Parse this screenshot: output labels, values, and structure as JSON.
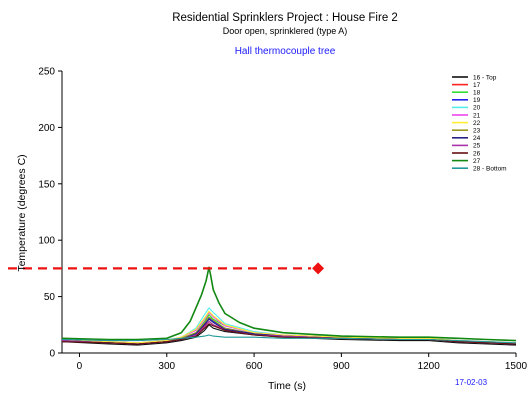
{
  "chart_data": {
    "type": "line",
    "title": "Residential Sprinklers Project : House Fire 2",
    "subtitle": "Door open, sprinklered (type A)",
    "subtitle2": "Hall thermocouple tree",
    "xlabel": "Time (s)",
    "ylabel": "Temperature (degrees C)",
    "date_stamp": "17-02-03",
    "xlim": [
      -60,
      1500
    ],
    "ylim": [
      0,
      250
    ],
    "xticks": [
      0,
      300,
      600,
      900,
      1200,
      1500
    ],
    "yticks": [
      0,
      50,
      100,
      150,
      200,
      250
    ],
    "grid": false,
    "legend_position": "top-right",
    "marker": {
      "x": 820,
      "y": 75,
      "color": "#ee1111"
    },
    "series": [
      {
        "name": "16 - Top",
        "color": "#111111",
        "points": [
          [
            -60,
            10
          ],
          [
            100,
            8
          ],
          [
            200,
            7
          ],
          [
            300,
            9
          ],
          [
            350,
            11
          ],
          [
            400,
            14
          ],
          [
            430,
            20
          ],
          [
            445,
            25
          ],
          [
            460,
            22
          ],
          [
            500,
            19
          ],
          [
            600,
            16
          ],
          [
            700,
            14
          ],
          [
            900,
            12
          ],
          [
            1100,
            11
          ],
          [
            1200,
            11
          ],
          [
            1300,
            9
          ],
          [
            1400,
            8
          ],
          [
            1500,
            7
          ]
        ]
      },
      {
        "name": "17",
        "color": "#ff2222",
        "points": [
          [
            -60,
            11
          ],
          [
            100,
            9
          ],
          [
            200,
            8
          ],
          [
            300,
            10
          ],
          [
            350,
            12
          ],
          [
            400,
            16
          ],
          [
            430,
            24
          ],
          [
            445,
            28
          ],
          [
            460,
            25
          ],
          [
            500,
            21
          ],
          [
            600,
            17
          ],
          [
            700,
            15
          ],
          [
            900,
            13
          ],
          [
            1100,
            12
          ],
          [
            1200,
            12
          ],
          [
            1300,
            10
          ],
          [
            1400,
            9
          ],
          [
            1500,
            8
          ]
        ]
      },
      {
        "name": "18",
        "color": "#33dd33",
        "points": [
          [
            -60,
            12
          ],
          [
            100,
            10
          ],
          [
            200,
            9
          ],
          [
            300,
            11
          ],
          [
            350,
            13
          ],
          [
            400,
            18
          ],
          [
            430,
            28
          ],
          [
            445,
            34
          ],
          [
            460,
            30
          ],
          [
            500,
            24
          ],
          [
            600,
            18
          ],
          [
            700,
            16
          ],
          [
            900,
            13
          ],
          [
            1100,
            12
          ],
          [
            1200,
            12
          ],
          [
            1300,
            10
          ],
          [
            1400,
            9
          ],
          [
            1500,
            8
          ]
        ]
      },
      {
        "name": "19",
        "color": "#2222ee",
        "points": [
          [
            -60,
            11
          ],
          [
            100,
            9
          ],
          [
            200,
            8
          ],
          [
            300,
            10
          ],
          [
            350,
            12
          ],
          [
            400,
            17
          ],
          [
            430,
            26
          ],
          [
            445,
            31
          ],
          [
            460,
            28
          ],
          [
            500,
            22
          ],
          [
            600,
            17
          ],
          [
            700,
            15
          ],
          [
            900,
            13
          ],
          [
            1100,
            12
          ],
          [
            1200,
            12
          ],
          [
            1300,
            10
          ],
          [
            1400,
            9
          ],
          [
            1500,
            8
          ]
        ]
      },
      {
        "name": "20",
        "color": "#55eeee",
        "points": [
          [
            -60,
            12
          ],
          [
            100,
            10
          ],
          [
            200,
            9
          ],
          [
            300,
            11
          ],
          [
            350,
            14
          ],
          [
            400,
            22
          ],
          [
            430,
            34
          ],
          [
            445,
            40
          ],
          [
            460,
            36
          ],
          [
            500,
            26
          ],
          [
            600,
            19
          ],
          [
            700,
            16
          ],
          [
            900,
            14
          ],
          [
            1100,
            13
          ],
          [
            1200,
            13
          ],
          [
            1300,
            11
          ],
          [
            1400,
            10
          ],
          [
            1500,
            9
          ]
        ]
      },
      {
        "name": "21",
        "color": "#ee44ee",
        "points": [
          [
            -60,
            12
          ],
          [
            100,
            10
          ],
          [
            200,
            9
          ],
          [
            300,
            11
          ],
          [
            350,
            14
          ],
          [
            400,
            20
          ],
          [
            430,
            30
          ],
          [
            445,
            36
          ],
          [
            460,
            32
          ],
          [
            500,
            24
          ],
          [
            600,
            18
          ],
          [
            700,
            16
          ],
          [
            900,
            14
          ],
          [
            1100,
            13
          ],
          [
            1200,
            13
          ],
          [
            1300,
            11
          ],
          [
            1400,
            10
          ],
          [
            1500,
            9
          ]
        ]
      },
      {
        "name": "22",
        "color": "#ffee33",
        "points": [
          [
            -60,
            12
          ],
          [
            100,
            10
          ],
          [
            200,
            9
          ],
          [
            300,
            11
          ],
          [
            350,
            14
          ],
          [
            400,
            21
          ],
          [
            430,
            31
          ],
          [
            445,
            37
          ],
          [
            460,
            33
          ],
          [
            500,
            25
          ],
          [
            600,
            18
          ],
          [
            700,
            16
          ],
          [
            900,
            14
          ],
          [
            1100,
            13
          ],
          [
            1200,
            13
          ],
          [
            1300,
            11
          ],
          [
            1400,
            10
          ],
          [
            1500,
            9
          ]
        ]
      },
      {
        "name": "23",
        "color": "#999922",
        "points": [
          [
            -60,
            11
          ],
          [
            100,
            9
          ],
          [
            200,
            8
          ],
          [
            300,
            10
          ],
          [
            350,
            13
          ],
          [
            400,
            18
          ],
          [
            430,
            27
          ],
          [
            445,
            32
          ],
          [
            460,
            29
          ],
          [
            500,
            22
          ],
          [
            600,
            17
          ],
          [
            700,
            15
          ],
          [
            900,
            13
          ],
          [
            1100,
            12
          ],
          [
            1200,
            12
          ],
          [
            1300,
            10
          ],
          [
            1400,
            9
          ],
          [
            1500,
            8
          ]
        ]
      },
      {
        "name": "24",
        "color": "#222288",
        "points": [
          [
            -60,
            11
          ],
          [
            100,
            9
          ],
          [
            200,
            8
          ],
          [
            300,
            10
          ],
          [
            350,
            12
          ],
          [
            400,
            17
          ],
          [
            430,
            25
          ],
          [
            445,
            30
          ],
          [
            460,
            27
          ],
          [
            500,
            21
          ],
          [
            600,
            17
          ],
          [
            700,
            15
          ],
          [
            900,
            13
          ],
          [
            1100,
            12
          ],
          [
            1200,
            12
          ],
          [
            1300,
            10
          ],
          [
            1400,
            9
          ],
          [
            1500,
            8
          ]
        ]
      },
      {
        "name": "25",
        "color": "#aa33aa",
        "points": [
          [
            -60,
            11
          ],
          [
            100,
            9
          ],
          [
            200,
            8
          ],
          [
            300,
            10
          ],
          [
            350,
            12
          ],
          [
            400,
            16
          ],
          [
            430,
            23
          ],
          [
            445,
            28
          ],
          [
            460,
            25
          ],
          [
            500,
            20
          ],
          [
            600,
            16
          ],
          [
            700,
            15
          ],
          [
            900,
            13
          ],
          [
            1100,
            12
          ],
          [
            1200,
            12
          ],
          [
            1300,
            10
          ],
          [
            1400,
            9
          ],
          [
            1500,
            8
          ]
        ]
      },
      {
        "name": "26",
        "color": "#661111",
        "points": [
          [
            -60,
            10
          ],
          [
            100,
            9
          ],
          [
            200,
            8
          ],
          [
            300,
            10
          ],
          [
            350,
            12
          ],
          [
            400,
            15
          ],
          [
            430,
            22
          ],
          [
            445,
            26
          ],
          [
            460,
            24
          ],
          [
            500,
            20
          ],
          [
            600,
            16
          ],
          [
            700,
            14
          ],
          [
            900,
            13
          ],
          [
            1100,
            12
          ],
          [
            1200,
            12
          ],
          [
            1300,
            10
          ],
          [
            1400,
            9
          ],
          [
            1500,
            8
          ]
        ]
      },
      {
        "name": "27",
        "color": "#118811",
        "points": [
          [
            -60,
            13
          ],
          [
            100,
            12
          ],
          [
            200,
            12
          ],
          [
            300,
            13
          ],
          [
            350,
            18
          ],
          [
            380,
            28
          ],
          [
            400,
            40
          ],
          [
            420,
            52
          ],
          [
            435,
            64
          ],
          [
            445,
            76
          ],
          [
            450,
            70
          ],
          [
            460,
            56
          ],
          [
            480,
            44
          ],
          [
            500,
            35
          ],
          [
            550,
            27
          ],
          [
            600,
            22
          ],
          [
            700,
            18
          ],
          [
            900,
            15
          ],
          [
            1100,
            14
          ],
          [
            1200,
            14
          ],
          [
            1300,
            13
          ],
          [
            1400,
            12
          ],
          [
            1500,
            11
          ]
        ]
      },
      {
        "name": "28 - Bottom",
        "color": "#229999",
        "points": [
          [
            -60,
            12
          ],
          [
            100,
            11
          ],
          [
            200,
            11
          ],
          [
            300,
            12
          ],
          [
            350,
            13
          ],
          [
            400,
            14
          ],
          [
            430,
            15
          ],
          [
            445,
            16
          ],
          [
            460,
            15
          ],
          [
            500,
            14
          ],
          [
            600,
            14
          ],
          [
            700,
            13
          ],
          [
            900,
            13
          ],
          [
            1100,
            12
          ],
          [
            1200,
            12
          ],
          [
            1300,
            11
          ],
          [
            1400,
            10
          ],
          [
            1500,
            9
          ]
        ]
      }
    ]
  }
}
